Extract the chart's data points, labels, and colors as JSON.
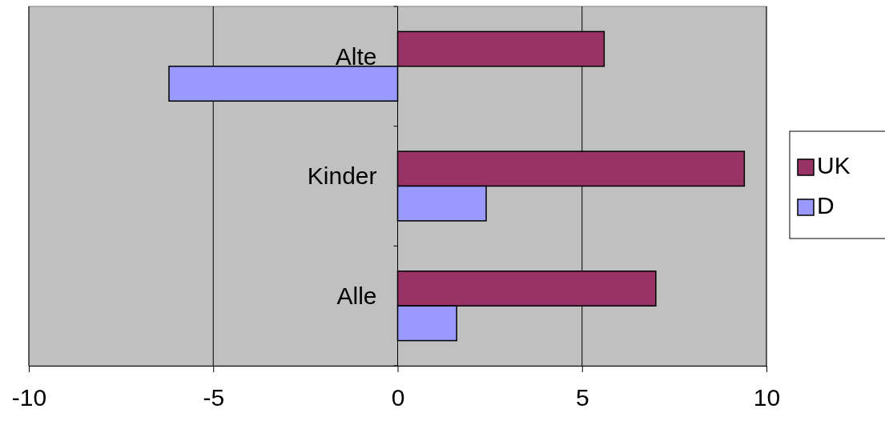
{
  "chart_data": {
    "type": "bar",
    "orientation": "horizontal",
    "categories": [
      "Alte",
      "Kinder",
      "Alle"
    ],
    "series": [
      {
        "name": "UK",
        "color": "#993366",
        "values": [
          5.6,
          9.4,
          7.0
        ]
      },
      {
        "name": "D",
        "color": "#9999ff",
        "values": [
          -6.2,
          2.4,
          1.6
        ]
      }
    ],
    "xlim": [
      -10,
      10
    ],
    "xticks": [
      -10,
      -5,
      0,
      5,
      10
    ],
    "grid": "x",
    "legend": "right"
  }
}
